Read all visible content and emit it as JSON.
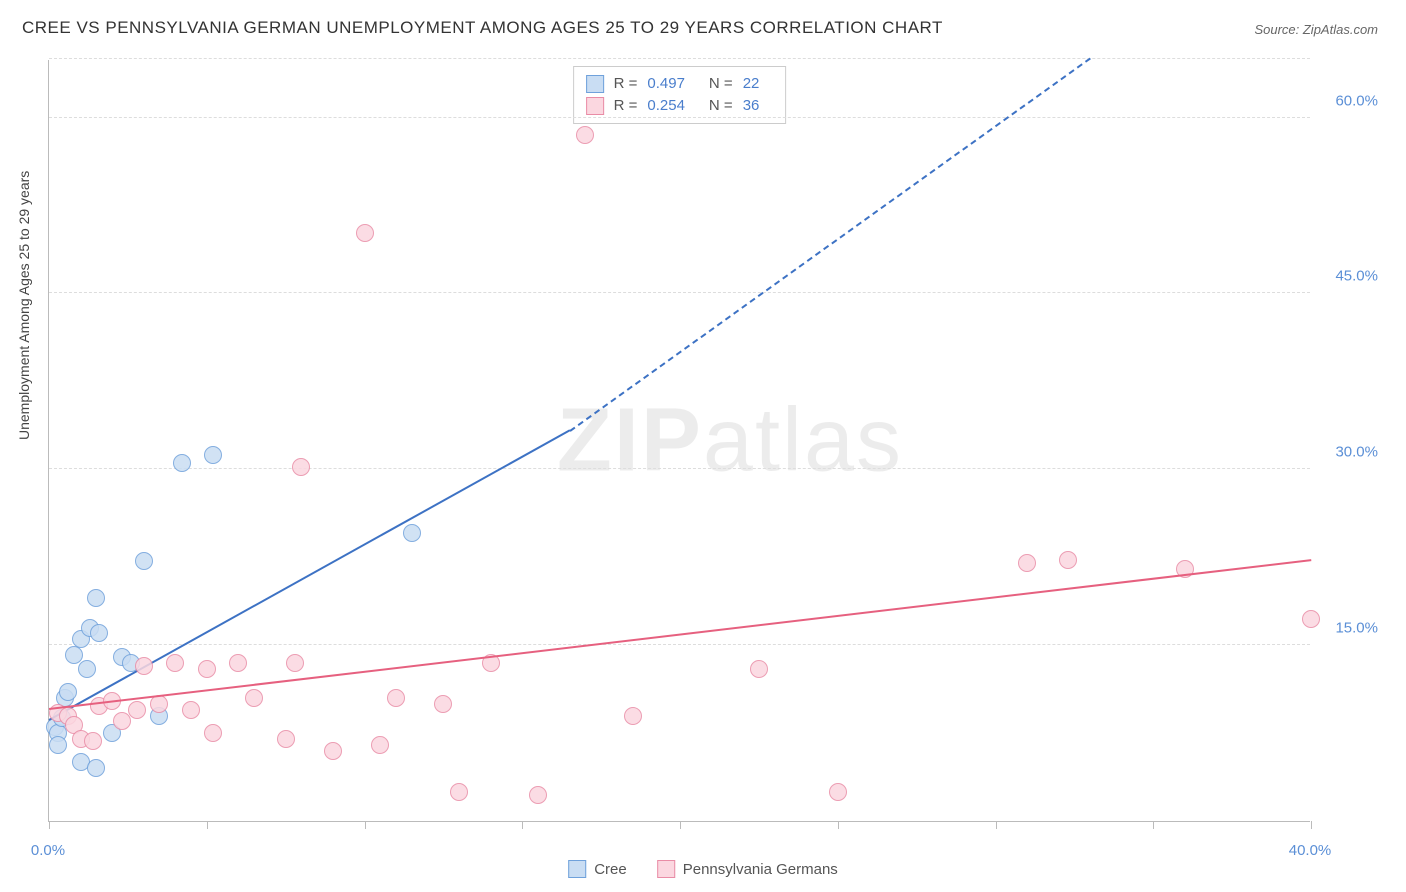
{
  "title": "CREE VS PENNSYLVANIA GERMAN UNEMPLOYMENT AMONG AGES 25 TO 29 YEARS CORRELATION CHART",
  "source": "Source: ZipAtlas.com",
  "watermark_prefix": "ZIP",
  "watermark_suffix": "atlas",
  "y_axis_title": "Unemployment Among Ages 25 to 29 years",
  "chart": {
    "xlim": [
      0,
      40
    ],
    "ylim": [
      0,
      65
    ],
    "x_ticks": [
      0,
      5,
      10,
      15,
      20,
      25,
      30,
      35,
      40
    ],
    "x_tick_labels": {
      "0": "0.0%",
      "40": "40.0%"
    },
    "y_ticks": [
      15,
      30,
      45,
      60
    ],
    "y_tick_labels": {
      "15": "15.0%",
      "30": "30.0%",
      "45": "45.0%",
      "60": "60.0%",
      "65": ""
    },
    "grid_color": "#dddddd",
    "background_color": "#ffffff",
    "series": [
      {
        "name": "Cree",
        "fill": "#c9ddf3",
        "stroke": "#6fa1db",
        "line_color": "#3d72c4",
        "r": 0.497,
        "n": 22,
        "marker_radius": 9,
        "trend": {
          "x1": 0,
          "y1": 8.5,
          "x2": 16.5,
          "y2": 33.2,
          "dash_to_x": 33,
          "dash_to_y": 65
        },
        "points": [
          [
            0.2,
            8.0
          ],
          [
            0.3,
            7.5
          ],
          [
            0.4,
            8.8
          ],
          [
            0.5,
            10.5
          ],
          [
            0.6,
            11.0
          ],
          [
            0.3,
            6.5
          ],
          [
            0.8,
            14.2
          ],
          [
            1.0,
            15.5
          ],
          [
            1.2,
            13.0
          ],
          [
            1.3,
            16.5
          ],
          [
            1.5,
            19.0
          ],
          [
            1.6,
            16.0
          ],
          [
            1.0,
            5.0
          ],
          [
            1.5,
            4.5
          ],
          [
            2.0,
            7.5
          ],
          [
            2.3,
            14.0
          ],
          [
            2.6,
            13.5
          ],
          [
            3.0,
            22.2
          ],
          [
            4.2,
            30.5
          ],
          [
            5.2,
            31.2
          ],
          [
            11.5,
            24.6
          ],
          [
            3.5,
            9.0
          ]
        ]
      },
      {
        "name": "Pennsylvania Germans",
        "fill": "#fbd7e0",
        "stroke": "#e98ca6",
        "line_color": "#e6607f",
        "r": 0.254,
        "n": 36,
        "marker_radius": 9,
        "trend": {
          "x1": 0,
          "y1": 9.5,
          "x2": 40,
          "y2": 22.2
        },
        "points": [
          [
            0.3,
            9.2
          ],
          [
            0.6,
            9.0
          ],
          [
            0.8,
            8.2
          ],
          [
            1.0,
            7.0
          ],
          [
            1.4,
            6.8
          ],
          [
            1.6,
            9.8
          ],
          [
            2.0,
            10.2
          ],
          [
            2.3,
            8.5
          ],
          [
            2.8,
            9.5
          ],
          [
            3.0,
            13.2
          ],
          [
            3.5,
            10.0
          ],
          [
            4.0,
            13.5
          ],
          [
            4.5,
            9.5
          ],
          [
            5.0,
            13.0
          ],
          [
            5.2,
            7.5
          ],
          [
            6.0,
            13.5
          ],
          [
            6.5,
            10.5
          ],
          [
            7.5,
            7.0
          ],
          [
            7.8,
            13.5
          ],
          [
            8.0,
            30.2
          ],
          [
            9.0,
            6.0
          ],
          [
            10.5,
            6.5
          ],
          [
            11.0,
            10.5
          ],
          [
            12.5,
            10.0
          ],
          [
            13.0,
            2.5
          ],
          [
            14.0,
            13.5
          ],
          [
            15.5,
            2.2
          ],
          [
            17.0,
            58.5
          ],
          [
            18.5,
            9.0
          ],
          [
            22.5,
            13.0
          ],
          [
            25.0,
            2.5
          ],
          [
            31.0,
            22.0
          ],
          [
            32.3,
            22.3
          ],
          [
            36.0,
            21.5
          ],
          [
            40.0,
            17.2
          ],
          [
            10.0,
            50.2
          ]
        ]
      }
    ]
  },
  "legend_bottom": [
    {
      "label": "Cree",
      "fill": "#c9ddf3",
      "stroke": "#6fa1db"
    },
    {
      "label": "Pennsylvania Germans",
      "fill": "#fbd7e0",
      "stroke": "#e98ca6"
    }
  ],
  "label_color": "#5b8fd6"
}
